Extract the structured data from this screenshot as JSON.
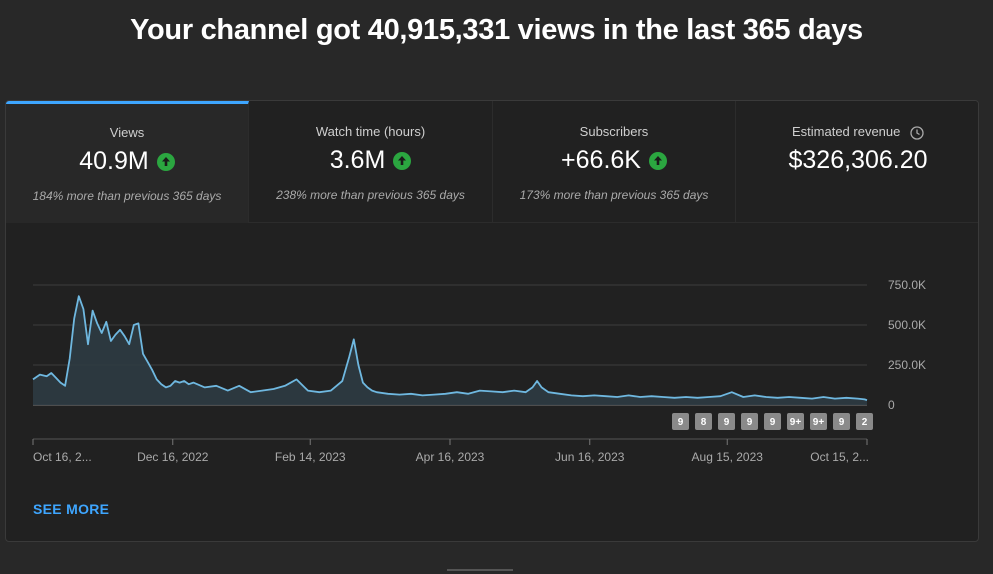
{
  "headline": "Your channel got 40,915,331 views in the last 365 days",
  "tabs": [
    {
      "label": "Views",
      "value": "40.9M",
      "trend": "up",
      "sub": "184% more than previous 365 days"
    },
    {
      "label": "Watch time (hours)",
      "value": "3.6M",
      "trend": "up",
      "sub": "238% more than previous 365 days"
    },
    {
      "label": "Subscribers",
      "value": "+66.6K",
      "trend": "up",
      "sub": "173% more than previous 365 days"
    },
    {
      "label": "Estimated revenue",
      "value": "$326,306.20",
      "icon": "clock-icon"
    }
  ],
  "see_more": "SEE MORE",
  "colors": {
    "accent": "#3ea6ff",
    "line": "#6fb8e0",
    "up": "#2ba640"
  },
  "chart_data": {
    "type": "area",
    "y_ticks": [
      "750.0K",
      "500.0K",
      "250.0K",
      "0"
    ],
    "y_tick_values": [
      750000,
      500000,
      250000,
      0
    ],
    "ylim": [
      0,
      750000
    ],
    "x_ticks": [
      "Oct 16, 2...",
      "Dec 16, 2022",
      "Feb 14, 2023",
      "Apr 16, 2023",
      "Jun 16, 2023",
      "Aug 15, 2023",
      "Oct 15, 2..."
    ],
    "x_tick_days": [
      0,
      61,
      121,
      182,
      243,
      303,
      364
    ],
    "series": [
      {
        "x_days": [
          0,
          3,
          6,
          8,
          10,
          12,
          14,
          16,
          18,
          20,
          22,
          24,
          26,
          28,
          30,
          32,
          34,
          36,
          38,
          40,
          42,
          44,
          46,
          48,
          50,
          52,
          54,
          56,
          58,
          60,
          62,
          64,
          66,
          68,
          70,
          75,
          80,
          85,
          90,
          95,
          100,
          105,
          110,
          115,
          120,
          125,
          130,
          135,
          138,
          140,
          142,
          144,
          146,
          148,
          150,
          155,
          160,
          165,
          170,
          175,
          180,
          185,
          190,
          195,
          200,
          205,
          210,
          215,
          218,
          220,
          222,
          225,
          230,
          235,
          240,
          245,
          250,
          255,
          260,
          265,
          270,
          275,
          280,
          285,
          290,
          295,
          300,
          305,
          310,
          315,
          320,
          325,
          330,
          335,
          340,
          345,
          350,
          355,
          360,
          363,
          364
        ],
        "y": [
          160000,
          190000,
          180000,
          200000,
          170000,
          140000,
          120000,
          290000,
          540000,
          680000,
          600000,
          380000,
          590000,
          510000,
          450000,
          520000,
          400000,
          440000,
          470000,
          430000,
          380000,
          500000,
          510000,
          320000,
          270000,
          220000,
          160000,
          130000,
          110000,
          120000,
          150000,
          140000,
          150000,
          130000,
          140000,
          110000,
          120000,
          90000,
          120000,
          80000,
          90000,
          100000,
          120000,
          160000,
          90000,
          80000,
          90000,
          150000,
          300000,
          410000,
          250000,
          140000,
          110000,
          90000,
          80000,
          70000,
          65000,
          70000,
          60000,
          65000,
          70000,
          80000,
          70000,
          90000,
          85000,
          80000,
          90000,
          80000,
          110000,
          150000,
          110000,
          80000,
          70000,
          60000,
          55000,
          60000,
          55000,
          50000,
          60000,
          50000,
          55000,
          50000,
          45000,
          50000,
          45000,
          50000,
          55000,
          80000,
          50000,
          60000,
          50000,
          45000,
          50000,
          45000,
          40000,
          50000,
          40000,
          45000,
          40000,
          35000,
          30000
        ]
      }
    ],
    "badges": [
      "9",
      "8",
      "9",
      "9",
      "9",
      "9+",
      "9+",
      "9",
      "2"
    ]
  }
}
